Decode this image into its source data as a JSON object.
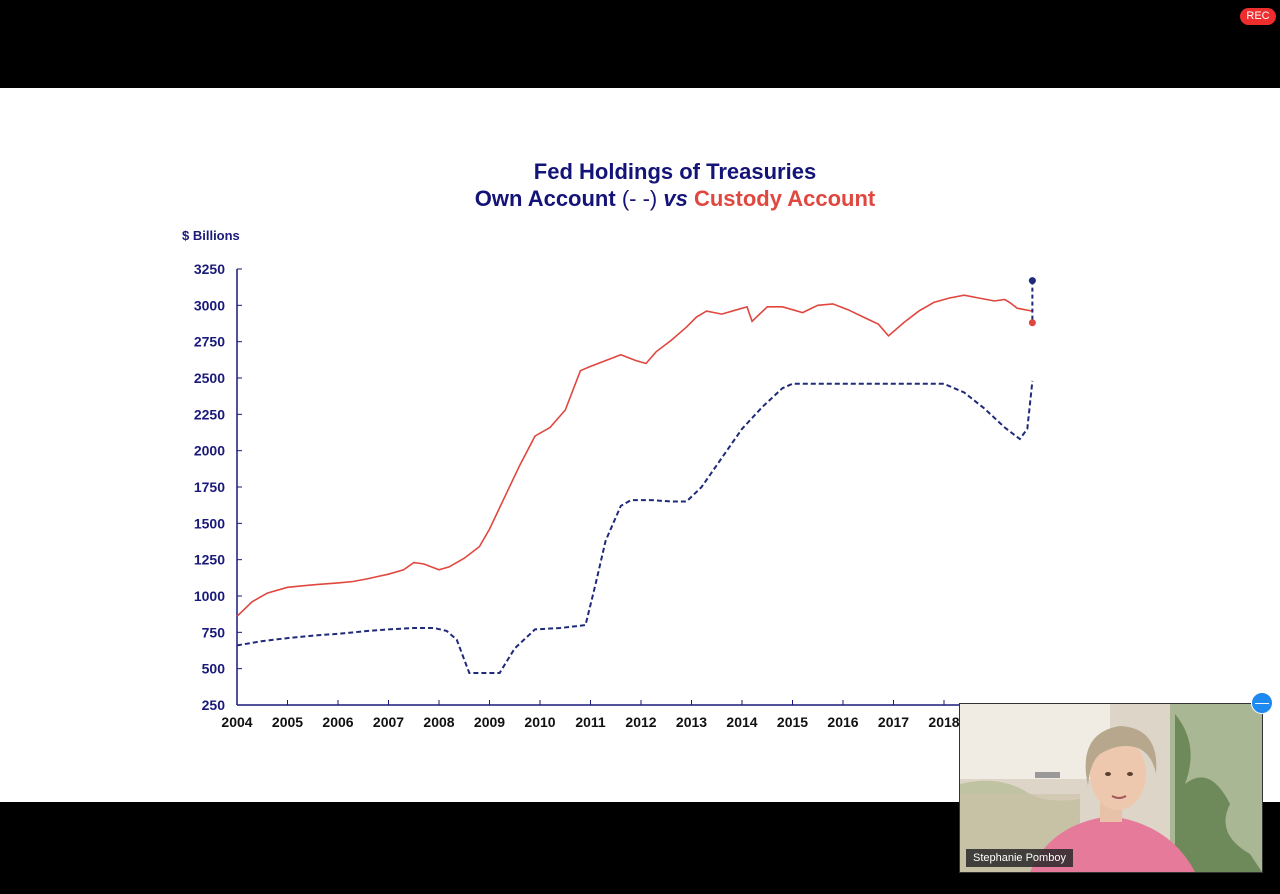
{
  "recording_badge": "REC",
  "participant": {
    "name": "Stephanie Pomboy"
  },
  "chart_data": {
    "type": "line",
    "title_line1": "Fed Holdings of Treasuries",
    "title_line2_parts": [
      "Own Account",
      " (- -) ",
      "vs",
      " Custody Account"
    ],
    "ylabel": "$ Billions",
    "ylim": [
      250,
      3250
    ],
    "yticks": [
      250,
      500,
      750,
      1000,
      1250,
      1500,
      1750,
      2000,
      2250,
      2500,
      2750,
      3000,
      3250
    ],
    "xlim": [
      2004,
      2019.2
    ],
    "xticks": [
      2004,
      2005,
      2006,
      2007,
      2008,
      2009,
      2010,
      2011,
      2012,
      2013,
      2014,
      2015,
      2016,
      2017,
      2018
    ],
    "colors": {
      "own_account": "#1f2a7a",
      "custody_account": "#e0473f",
      "title_blue": "#141478",
      "title_red": "#e0473f"
    },
    "series": [
      {
        "name": "Custody Account",
        "style": "solid",
        "x": [
          2004.0,
          2004.3,
          2004.6,
          2005.0,
          2005.3,
          2005.6,
          2006.0,
          2006.3,
          2006.6,
          2007.0,
          2007.3,
          2007.5,
          2007.7,
          2008.0,
          2008.2,
          2008.5,
          2008.8,
          2009.0,
          2009.3,
          2009.6,
          2009.9,
          2010.2,
          2010.5,
          2010.8,
          2011.0,
          2011.3,
          2011.6,
          2011.9,
          2012.1,
          2012.3,
          2012.6,
          2012.9,
          2013.1,
          2013.3,
          2013.6,
          2013.9,
          2014.1,
          2014.2,
          2014.5,
          2014.8,
          2015.0,
          2015.2,
          2015.5,
          2015.8,
          2016.1,
          2016.4,
          2016.7,
          2016.9,
          2017.2,
          2017.5,
          2017.8,
          2018.1,
          2018.4,
          2018.7,
          2019.0,
          2019.2,
          2019.3,
          2019.45,
          2019.75
        ],
        "values": [
          860,
          960,
          1020,
          1060,
          1070,
          1080,
          1090,
          1100,
          1120,
          1150,
          1180,
          1230,
          1220,
          1180,
          1200,
          1260,
          1340,
          1460,
          1680,
          1900,
          2100,
          2160,
          2280,
          2550,
          2580,
          2620,
          2660,
          2620,
          2600,
          2680,
          2760,
          2850,
          2920,
          2960,
          2940,
          2970,
          2990,
          2890,
          2990,
          2990,
          2970,
          2950,
          3000,
          3010,
          2970,
          2920,
          2870,
          2790,
          2880,
          2960,
          3020,
          3050,
          3070,
          3050,
          3030,
          3040,
          3020,
          2980,
          2960
        ]
      },
      {
        "name": "Own Account",
        "style": "dashed",
        "x": [
          2004.0,
          2004.5,
          2005.0,
          2005.6,
          2006.0,
          2006.6,
          2007.0,
          2007.5,
          2007.9,
          2008.15,
          2008.35,
          2008.6,
          2009.0,
          2009.2,
          2009.5,
          2009.9,
          2010.4,
          2010.9,
          2011.1,
          2011.3,
          2011.6,
          2011.8,
          2012.2,
          2012.6,
          2012.9,
          2013.2,
          2013.6,
          2014.0,
          2014.4,
          2014.8,
          2015.0,
          2015.5,
          2016.0,
          2016.5,
          2017.0,
          2017.5,
          2018.0,
          2018.4,
          2018.8,
          2019.2,
          2019.5,
          2019.65,
          2019.75
        ],
        "values": [
          660,
          690,
          710,
          730,
          740,
          760,
          770,
          780,
          780,
          760,
          700,
          470,
          470,
          470,
          640,
          770,
          780,
          800,
          1080,
          1380,
          1620,
          1660,
          1660,
          1650,
          1650,
          1750,
          1950,
          2150,
          2300,
          2430,
          2460,
          2460,
          2460,
          2460,
          2460,
          2460,
          2460,
          2400,
          2290,
          2160,
          2080,
          2150,
          2480
        ]
      }
    ],
    "endpoints": {
      "own_account_end": 3170,
      "custody_account_end": 2880
    }
  }
}
